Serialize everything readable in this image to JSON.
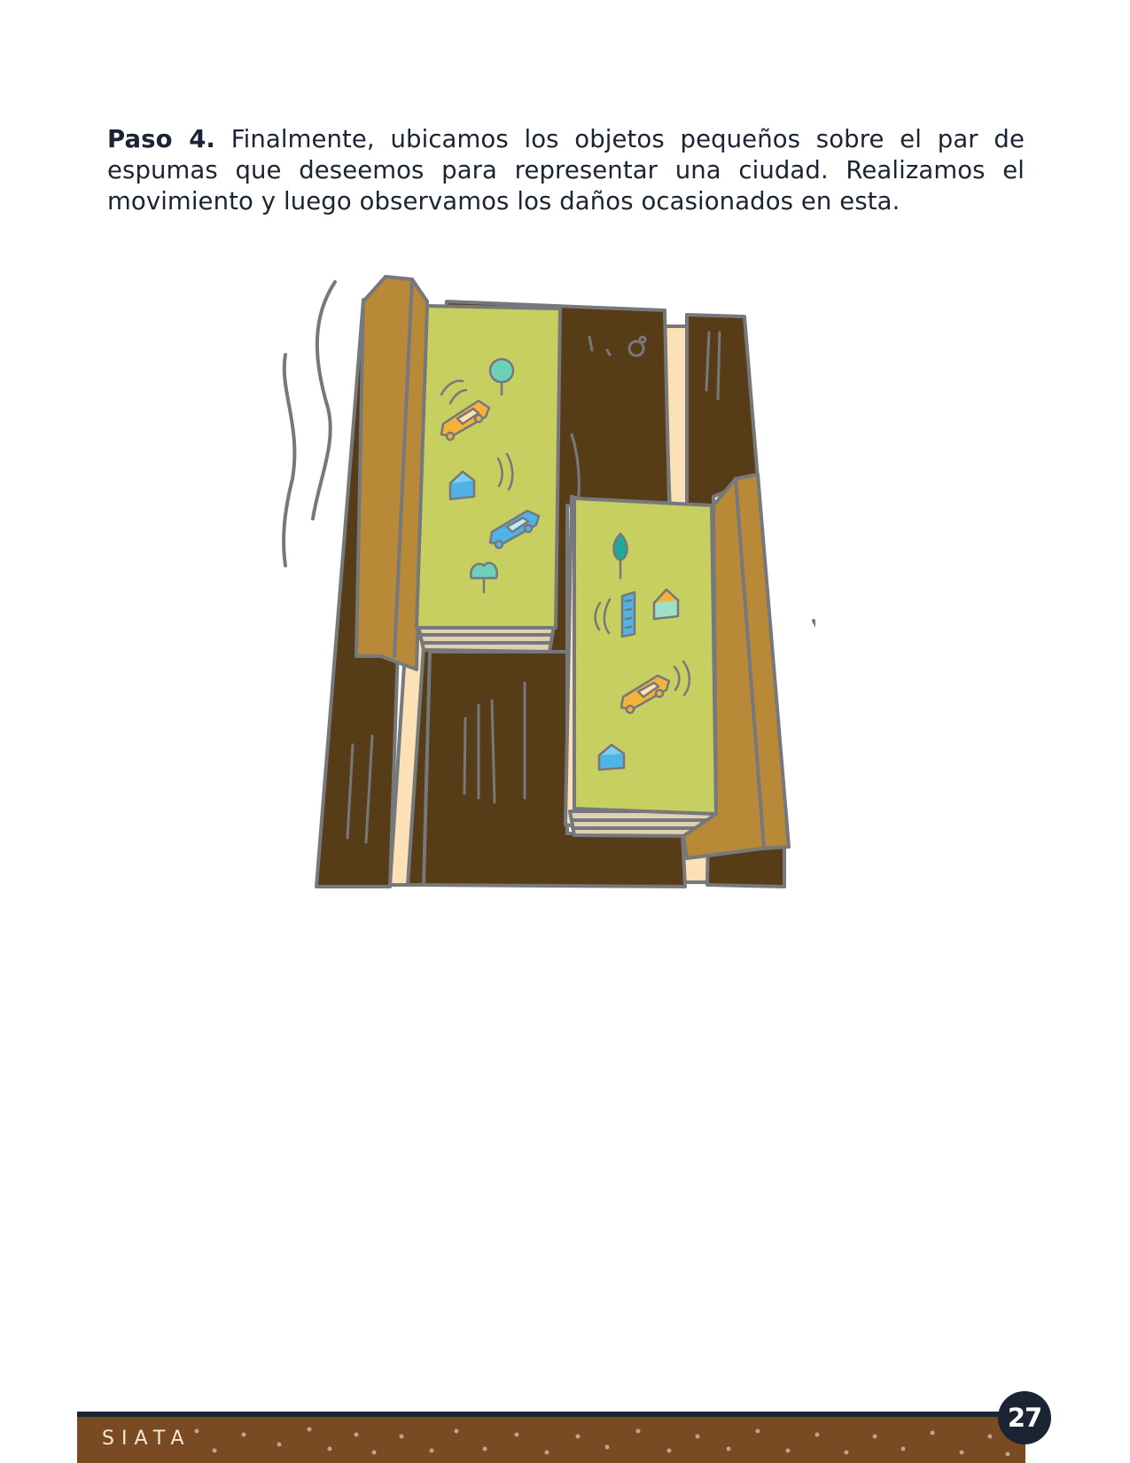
{
  "step": {
    "label": "Paso 4.",
    "text": " Finalmente, ubicamos los objetos pequeños sobre el par de espumas que deseemos para representar una ciudad. Realizamos el movimiento y luego observamos los daños ocasionados en esta."
  },
  "footer": {
    "brand": "SIATA",
    "page_number": "27"
  },
  "colors": {
    "soil_dark": "#573d17",
    "plank": "#b88936",
    "foam_top": "#c6cf5f",
    "foam_side": "#fce1b6",
    "outline": "#77787b",
    "footer_brown": "#7a4a22",
    "navy": "#1b2432"
  }
}
